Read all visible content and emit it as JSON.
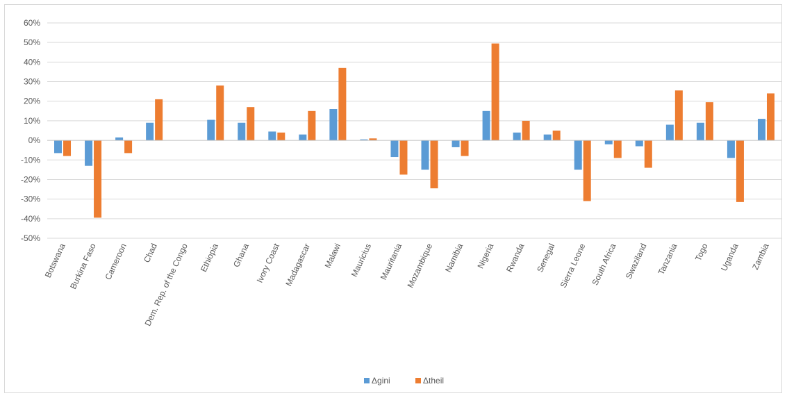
{
  "chart_data": {
    "type": "bar",
    "title": "",
    "xlabel": "",
    "ylabel": "",
    "ylim": [
      -50,
      60
    ],
    "ytick_labels": [
      "-50%",
      "-40%",
      "-30%",
      "-20%",
      "-10%",
      "0%",
      "10%",
      "20%",
      "30%",
      "40%",
      "50%",
      "60%"
    ],
    "grid": true,
    "legend_position": "bottom",
    "categories": [
      "Botswana",
      "Burkina Faso",
      "Cameroon",
      "Chad",
      "Dem. Rep. of the Congo",
      "Ethiopia",
      "Ghana",
      "Ivory Coast",
      "Madagascar",
      "Malawi",
      "Mauricius",
      "Mauritania",
      "Mozambique",
      "Namibia",
      "Nigeria",
      "Rwanda",
      "Senegal",
      "Sierra Leone",
      "South Africa",
      "Swaziland",
      "Tanzania",
      "Togo",
      "Uganda",
      "Zambia"
    ],
    "series": [
      {
        "name": "Δgini",
        "color": "#5b9bd5",
        "values": [
          -6.5,
          -13,
          1.5,
          9,
          0,
          10.5,
          9,
          4.5,
          3,
          16,
          0.5,
          -8.5,
          -15,
          -3.5,
          15,
          4,
          3,
          -15,
          -2,
          -3,
          8,
          9,
          -9,
          11
        ]
      },
      {
        "name": "Δtheil",
        "color": "#ed7d31",
        "values": [
          -8,
          -39.5,
          -6.5,
          21,
          0,
          28,
          17,
          4,
          15,
          37,
          1,
          -17.5,
          -24.5,
          -8,
          49.5,
          10,
          5,
          -31,
          -9,
          -14,
          25.5,
          19.5,
          -31.5,
          24
        ]
      }
    ]
  }
}
